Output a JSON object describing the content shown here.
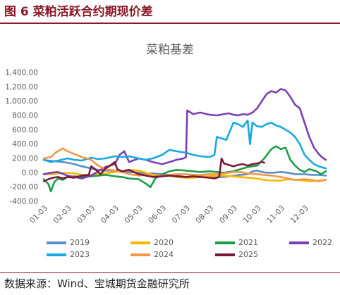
{
  "figure": {
    "title": "图 6 菜粕活跃合约期现价差",
    "source": "数据来源：Wind、宝城期货金融研究所"
  },
  "chart_data": {
    "type": "line",
    "title": "菜粕基差",
    "xlabel": "",
    "ylabel": "",
    "ylim": [
      -400,
      1400
    ],
    "yticks": [
      -400,
      -200,
      0,
      200,
      400,
      600,
      800,
      1000,
      1200,
      1400
    ],
    "ytick_labels": [
      "-400.00",
      "-200.00",
      "0.00",
      "200.00",
      "400.00",
      "600.00",
      "800.00",
      "1,000.00",
      "1,200.00",
      "1,400.00"
    ],
    "xticks": [
      "01-03",
      "02-03",
      "03-03",
      "04-03",
      "05-03",
      "06-03",
      "07-03",
      "08-03",
      "09-03",
      "10-03",
      "11-03",
      "12-03"
    ],
    "x_unit": "month",
    "xlim": [
      0,
      11.9
    ],
    "grid": false,
    "legend_position": "bottom",
    "series": [
      {
        "name": "2019",
        "color": "#5b8ec9",
        "points": [
          [
            0,
            180
          ],
          [
            0.2,
            170
          ],
          [
            0.5,
            160
          ],
          [
            0.8,
            150
          ],
          [
            1.0,
            140
          ],
          [
            1.3,
            120
          ],
          [
            1.6,
            90
          ],
          [
            2.0,
            60
          ],
          [
            2.3,
            40
          ],
          [
            2.6,
            30
          ],
          [
            3.0,
            30
          ],
          [
            3.3,
            20
          ],
          [
            3.6,
            10
          ],
          [
            4.0,
            0
          ],
          [
            4.3,
            -10
          ],
          [
            4.6,
            -10
          ],
          [
            5.0,
            -20
          ],
          [
            5.3,
            -30
          ],
          [
            5.6,
            -40
          ],
          [
            6.0,
            -60
          ],
          [
            6.3,
            -50
          ],
          [
            6.6,
            -50
          ],
          [
            7.0,
            -60
          ],
          [
            7.3,
            -60
          ],
          [
            7.6,
            -60
          ],
          [
            8.0,
            -40
          ],
          [
            8.3,
            -30
          ],
          [
            8.6,
            -20
          ],
          [
            8.8,
            20
          ],
          [
            9.0,
            30
          ],
          [
            9.2,
            10
          ],
          [
            9.4,
            0
          ],
          [
            9.7,
            0
          ],
          [
            10.0,
            10
          ],
          [
            10.3,
            0
          ],
          [
            10.6,
            -20
          ],
          [
            11.0,
            -20
          ],
          [
            11.3,
            -30
          ],
          [
            11.6,
            -30
          ],
          [
            11.9,
            -40
          ]
        ]
      },
      {
        "name": "2020",
        "color": "#f5b700",
        "points": [
          [
            0,
            -20
          ],
          [
            0.3,
            -20
          ],
          [
            0.6,
            -10
          ],
          [
            1.0,
            0
          ],
          [
            1.3,
            -10
          ],
          [
            1.6,
            -30
          ],
          [
            2.0,
            -30
          ],
          [
            2.3,
            -20
          ],
          [
            2.6,
            -10
          ],
          [
            3.0,
            10
          ],
          [
            3.3,
            20
          ],
          [
            3.6,
            40
          ],
          [
            4.0,
            30
          ],
          [
            4.3,
            0
          ],
          [
            4.6,
            -30
          ],
          [
            5.0,
            -40
          ],
          [
            5.3,
            -40
          ],
          [
            5.6,
            -60
          ],
          [
            6.0,
            -70
          ],
          [
            6.3,
            -70
          ],
          [
            6.6,
            -60
          ],
          [
            7.0,
            -50
          ],
          [
            7.3,
            -40
          ],
          [
            7.6,
            -40
          ],
          [
            8.0,
            -50
          ],
          [
            8.3,
            -60
          ],
          [
            8.6,
            -70
          ],
          [
            9.0,
            -80
          ],
          [
            9.3,
            -100
          ],
          [
            9.6,
            -110
          ],
          [
            10.0,
            -110
          ],
          [
            10.3,
            -90
          ],
          [
            10.6,
            -100
          ],
          [
            11.0,
            -110
          ],
          [
            11.3,
            -120
          ],
          [
            11.6,
            -110
          ],
          [
            11.9,
            -100
          ]
        ]
      },
      {
        "name": "2021",
        "color": "#1c9d48",
        "points": [
          [
            0,
            -90
          ],
          [
            0.2,
            -160
          ],
          [
            0.3,
            -260
          ],
          [
            0.45,
            -130
          ],
          [
            0.6,
            -80
          ],
          [
            0.8,
            -100
          ],
          [
            1.0,
            -60
          ],
          [
            1.3,
            -50
          ],
          [
            1.6,
            -60
          ],
          [
            2.0,
            -50
          ],
          [
            2.3,
            -40
          ],
          [
            2.6,
            -30
          ],
          [
            3.0,
            -50
          ],
          [
            3.3,
            -60
          ],
          [
            3.6,
            -80
          ],
          [
            4.0,
            -90
          ],
          [
            4.3,
            -150
          ],
          [
            4.5,
            -200
          ],
          [
            4.7,
            -80
          ],
          [
            5.0,
            -20
          ],
          [
            5.3,
            20
          ],
          [
            5.6,
            40
          ],
          [
            6.0,
            30
          ],
          [
            6.3,
            20
          ],
          [
            6.6,
            10
          ],
          [
            7.0,
            20
          ],
          [
            7.3,
            10
          ],
          [
            7.6,
            0
          ],
          [
            8.0,
            20
          ],
          [
            8.3,
            50
          ],
          [
            8.6,
            80
          ],
          [
            9.0,
            100
          ],
          [
            9.3,
            200
          ],
          [
            9.6,
            330
          ],
          [
            9.8,
            370
          ],
          [
            10.0,
            330
          ],
          [
            10.2,
            350
          ],
          [
            10.4,
            180
          ],
          [
            10.6,
            100
          ],
          [
            10.8,
            40
          ],
          [
            11.0,
            10
          ],
          [
            11.2,
            50
          ],
          [
            11.5,
            20
          ],
          [
            11.7,
            -20
          ],
          [
            11.9,
            20
          ]
        ]
      },
      {
        "name": "2022",
        "color": "#7b3fb4",
        "points": [
          [
            0,
            -20
          ],
          [
            0.3,
            0
          ],
          [
            0.6,
            10
          ],
          [
            1.0,
            -40
          ],
          [
            1.3,
            -60
          ],
          [
            1.6,
            -80
          ],
          [
            2.0,
            -40
          ],
          [
            2.3,
            20
          ],
          [
            2.6,
            80
          ],
          [
            3.0,
            120
          ],
          [
            3.2,
            250
          ],
          [
            3.4,
            300
          ],
          [
            3.6,
            150
          ],
          [
            4.0,
            200
          ],
          [
            4.3,
            180
          ],
          [
            4.6,
            150
          ],
          [
            5.0,
            120
          ],
          [
            5.3,
            150
          ],
          [
            5.6,
            180
          ],
          [
            5.9,
            200
          ],
          [
            6.0,
            220
          ],
          [
            6.05,
            870
          ],
          [
            6.3,
            820
          ],
          [
            6.6,
            840
          ],
          [
            7.0,
            810
          ],
          [
            7.3,
            800
          ],
          [
            7.6,
            820
          ],
          [
            7.8,
            830
          ],
          [
            8.0,
            810
          ],
          [
            8.2,
            800
          ],
          [
            8.4,
            820
          ],
          [
            8.6,
            810
          ],
          [
            8.8,
            840
          ],
          [
            9.0,
            900
          ],
          [
            9.2,
            1000
          ],
          [
            9.4,
            1100
          ],
          [
            9.6,
            1140
          ],
          [
            9.8,
            1120
          ],
          [
            10.0,
            1170
          ],
          [
            10.2,
            1150
          ],
          [
            10.4,
            1060
          ],
          [
            10.6,
            950
          ],
          [
            10.8,
            900
          ],
          [
            11.0,
            700
          ],
          [
            11.2,
            500
          ],
          [
            11.4,
            350
          ],
          [
            11.6,
            260
          ],
          [
            11.8,
            200
          ],
          [
            11.9,
            180
          ]
        ]
      },
      {
        "name": "2023",
        "color": "#19a8e3",
        "points": [
          [
            0,
            180
          ],
          [
            0.3,
            150
          ],
          [
            0.6,
            170
          ],
          [
            1.0,
            200
          ],
          [
            1.3,
            180
          ],
          [
            1.6,
            170
          ],
          [
            2.0,
            210
          ],
          [
            2.3,
            190
          ],
          [
            2.6,
            200
          ],
          [
            3.0,
            230
          ],
          [
            3.3,
            220
          ],
          [
            3.6,
            230
          ],
          [
            4.0,
            200
          ],
          [
            4.3,
            180
          ],
          [
            4.6,
            200
          ],
          [
            5.0,
            250
          ],
          [
            5.3,
            320
          ],
          [
            5.6,
            300
          ],
          [
            6.0,
            280
          ],
          [
            6.3,
            250
          ],
          [
            6.6,
            230
          ],
          [
            7.0,
            220
          ],
          [
            7.2,
            250
          ],
          [
            7.3,
            500
          ],
          [
            7.5,
            480
          ],
          [
            7.7,
            460
          ],
          [
            8.0,
            700
          ],
          [
            8.2,
            680
          ],
          [
            8.4,
            640
          ],
          [
            8.6,
            730
          ],
          [
            8.7,
            400
          ],
          [
            8.8,
            700
          ],
          [
            9.0,
            650
          ],
          [
            9.2,
            640
          ],
          [
            9.4,
            680
          ],
          [
            9.6,
            700
          ],
          [
            9.8,
            660
          ],
          [
            10.0,
            640
          ],
          [
            10.2,
            600
          ],
          [
            10.4,
            560
          ],
          [
            10.6,
            500
          ],
          [
            10.8,
            400
          ],
          [
            11.0,
            250
          ],
          [
            11.2,
            180
          ],
          [
            11.4,
            120
          ],
          [
            11.6,
            90
          ],
          [
            11.8,
            70
          ],
          [
            11.9,
            60
          ]
        ]
      },
      {
        "name": "2024",
        "color": "#f79646",
        "points": [
          [
            0,
            200
          ],
          [
            0.3,
            220
          ],
          [
            0.5,
            280
          ],
          [
            0.8,
            340
          ],
          [
            1.0,
            300
          ],
          [
            1.3,
            260
          ],
          [
            1.6,
            220
          ],
          [
            2.0,
            180
          ],
          [
            2.3,
            100
          ],
          [
            2.6,
            50
          ],
          [
            3.0,
            30
          ],
          [
            3.3,
            10
          ],
          [
            3.6,
            -20
          ],
          [
            4.0,
            -40
          ],
          [
            4.3,
            -30
          ],
          [
            4.6,
            -50
          ],
          [
            5.0,
            -40
          ],
          [
            5.3,
            -30
          ],
          [
            5.6,
            -20
          ],
          [
            6.0,
            -20
          ],
          [
            6.3,
            -30
          ],
          [
            6.6,
            -30
          ],
          [
            7.0,
            -20
          ],
          [
            7.3,
            -20
          ],
          [
            7.6,
            -10
          ],
          [
            8.0,
            10
          ],
          [
            8.3,
            10
          ],
          [
            8.6,
            -10
          ],
          [
            9.0,
            -20
          ],
          [
            9.3,
            -30
          ],
          [
            9.6,
            -40
          ],
          [
            10.0,
            -60
          ],
          [
            10.3,
            -80
          ],
          [
            10.6,
            -100
          ],
          [
            11.0,
            -90
          ],
          [
            11.3,
            -100
          ],
          [
            11.6,
            -120
          ],
          [
            11.9,
            -100
          ]
        ]
      },
      {
        "name": "2025",
        "color": "#7b1935",
        "points": [
          [
            0,
            -120
          ],
          [
            0.2,
            -90
          ],
          [
            0.4,
            -70
          ],
          [
            0.6,
            -60
          ],
          [
            0.8,
            -80
          ],
          [
            1.0,
            -60
          ],
          [
            1.3,
            -70
          ],
          [
            1.6,
            -40
          ],
          [
            1.9,
            -30
          ],
          [
            2.0,
            90
          ],
          [
            2.2,
            40
          ],
          [
            2.4,
            -20
          ],
          [
            2.6,
            60
          ],
          [
            2.8,
            100
          ],
          [
            3.0,
            150
          ],
          [
            3.1,
            50
          ],
          [
            3.3,
            20
          ],
          [
            3.6,
            40
          ],
          [
            4.0,
            -20
          ],
          [
            4.3,
            -40
          ],
          [
            4.6,
            -60
          ],
          [
            5.0,
            -50
          ],
          [
            5.3,
            -40
          ],
          [
            5.6,
            -50
          ],
          [
            6.0,
            -60
          ],
          [
            6.3,
            -50
          ],
          [
            6.6,
            -60
          ],
          [
            7.0,
            -70
          ],
          [
            7.2,
            -80
          ],
          [
            7.4,
            -60
          ],
          [
            7.5,
            200
          ],
          [
            7.6,
            130
          ],
          [
            7.8,
            110
          ],
          [
            8.0,
            90
          ],
          [
            8.2,
            110
          ],
          [
            8.4,
            120
          ],
          [
            8.6,
            100
          ],
          [
            8.8,
            120
          ],
          [
            9.0,
            130
          ],
          [
            9.2,
            150
          ],
          [
            9.3,
            140
          ]
        ]
      }
    ]
  }
}
